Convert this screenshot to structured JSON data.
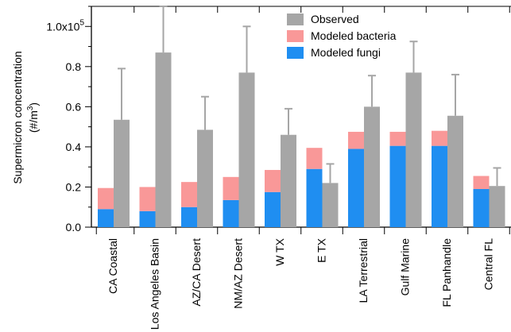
{
  "chart_data": {
    "type": "bar",
    "categories": [
      "CA Coastal",
      "Los Angeles Basin",
      "AZ/CA Desert",
      "NM/AZ Desert",
      "W TX",
      "E TX",
      "LA Terrestrial",
      "Gulf Marine",
      "FL Panhandle",
      "Central FL"
    ],
    "series": [
      {
        "name": "Modeled fungi",
        "stack": "modeled",
        "color": "#1f8ef1",
        "values": [
          0.09,
          0.08,
          0.1,
          0.135,
          0.175,
          0.29,
          0.39,
          0.405,
          0.405,
          0.19
        ]
      },
      {
        "name": "Modeled bacteria",
        "stack": "modeled",
        "color": "#f99898",
        "values": [
          0.105,
          0.12,
          0.125,
          0.115,
          0.11,
          0.105,
          0.085,
          0.07,
          0.075,
          0.065
        ]
      },
      {
        "name": "Observed",
        "stack": "observed",
        "color": "#a6a6a6",
        "values": [
          0.535,
          0.87,
          0.485,
          0.77,
          0.46,
          0.22,
          0.6,
          0.77,
          0.555,
          0.205
        ],
        "error": [
          0.255,
          0.23,
          0.165,
          0.23,
          0.13,
          0.095,
          0.155,
          0.155,
          0.205,
          0.09
        ]
      }
    ],
    "ylabel_line1": "Supermicron concentration",
    "ylabel_line2": "(#/m",
    "ylabel_sup": "3",
    "ylabel_close": ")",
    "ylim": [
      0,
      1.1
    ],
    "yticks": [
      {
        "value": 0.0,
        "label": "0.0"
      },
      {
        "value": 0.2,
        "label": "0.2"
      },
      {
        "value": 0.4,
        "label": "0.4"
      },
      {
        "value": 0.6,
        "label": "0.6"
      },
      {
        "value": 0.8,
        "label": "0.8"
      },
      {
        "value": 1.0,
        "label": "1.0x10",
        "sup": "5"
      }
    ],
    "legend_order": [
      "Observed",
      "Modeled bacteria",
      "Modeled fungi"
    ],
    "legend_position": "top-right",
    "grid": false
  }
}
